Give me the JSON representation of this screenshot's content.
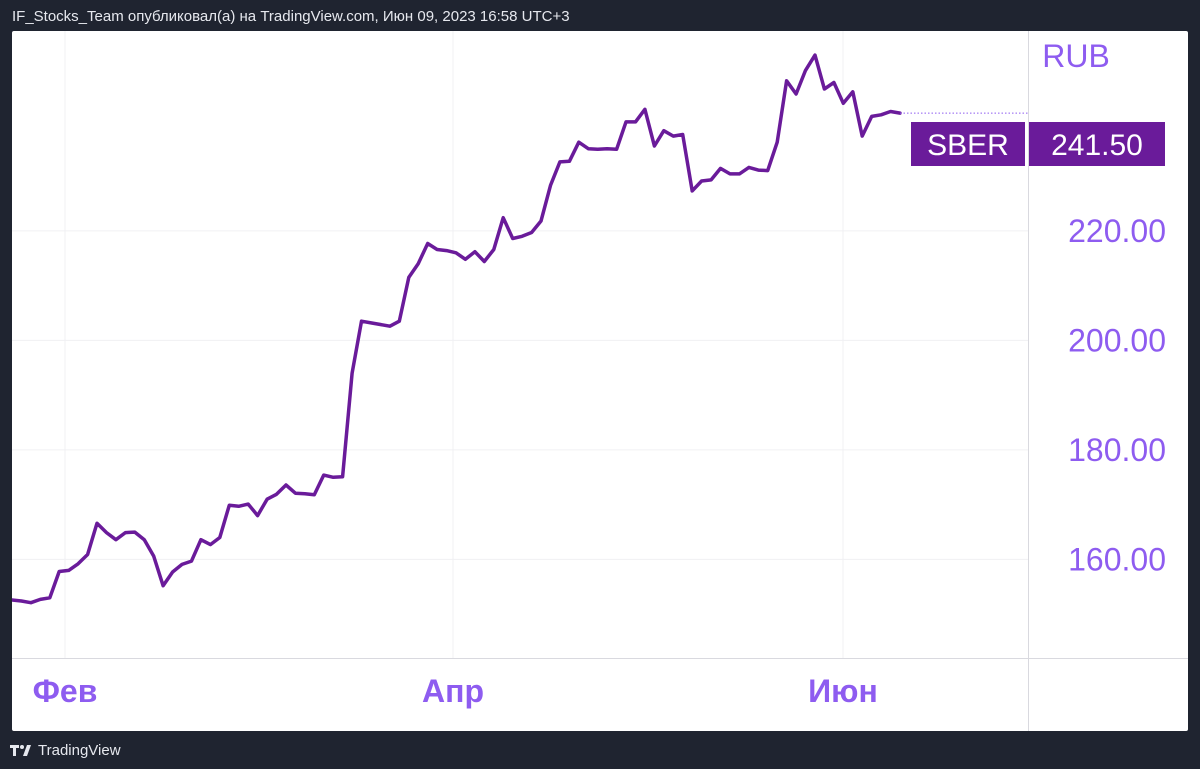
{
  "header": {
    "attribution": "IF_Stocks_Team опубликовал(а) на TradingView.com, Июн 09, 2023 16:58 UTC+3"
  },
  "footer": {
    "brand": "TradingView"
  },
  "colors": {
    "line": "#6a1b9a",
    "axis_text": "#8e5cf0",
    "label_bg": "#6a1b9a",
    "label_text": "#ffffff",
    "grid": "#f0f0f3",
    "frame": "#d9d9df"
  },
  "chart_data": {
    "type": "line",
    "title": "",
    "currency": "RUB",
    "xlabel": "",
    "ylabel": "",
    "ylim": [
      142,
      256.5
    ],
    "y_ticks": [
      "160.00",
      "180.00",
      "200.00",
      "220.00"
    ],
    "x_ticks": [
      "Фев",
      "Апр",
      "Июн"
    ],
    "grid": true,
    "last_price": {
      "ticker": "SBER",
      "value": "241.50"
    },
    "series": [
      {
        "values": [
          152.6,
          152.4,
          152.1,
          152.7,
          153.0,
          157.8,
          158.0,
          159.2,
          160.9,
          166.6,
          164.9,
          163.6,
          164.9,
          165.0,
          163.6,
          160.6,
          155.2,
          157.7,
          159.1,
          159.7,
          163.6,
          162.7,
          164.0,
          169.9,
          169.7,
          170.1,
          168.0,
          171.0,
          171.9,
          173.6,
          172.1,
          172.0,
          171.8,
          175.4,
          175.0,
          175.1,
          194.0,
          203.5,
          203.2,
          202.9,
          202.6,
          203.5,
          211.5,
          214.0,
          217.7,
          216.6,
          216.4,
          216.0,
          214.8,
          216.2,
          214.4,
          216.6,
          222.4,
          218.6,
          219.0,
          219.7,
          221.8,
          228.3,
          232.6,
          232.7,
          236.2,
          235.0,
          234.9,
          235.0,
          234.9,
          239.9,
          239.9,
          242.2,
          235.5,
          238.3,
          237.3,
          237.6,
          227.3,
          229.1,
          229.3,
          231.4,
          230.4,
          230.4,
          231.6,
          231.1,
          231.0,
          236.2,
          247.4,
          245.0,
          249.3,
          252.1,
          245.9,
          247.1,
          243.3,
          245.4,
          237.3,
          240.9,
          241.2,
          241.8,
          241.5
        ]
      }
    ]
  }
}
